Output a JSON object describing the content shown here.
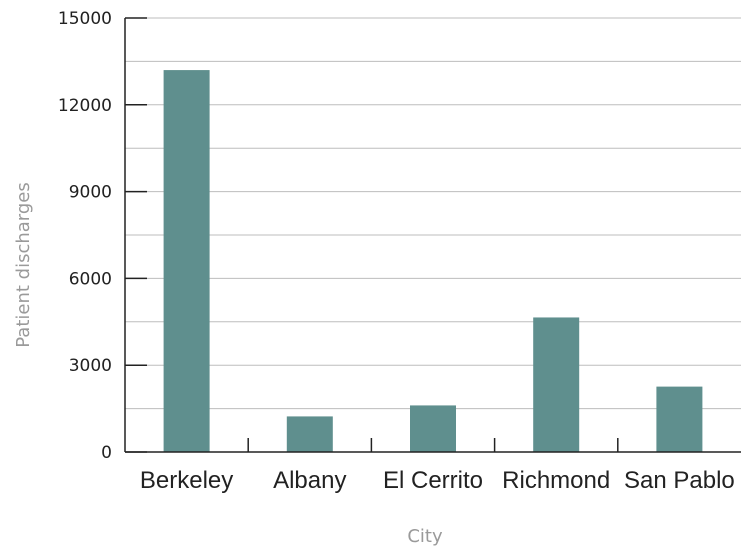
{
  "chart_data": {
    "type": "bar",
    "title": "",
    "xlabel": "City",
    "ylabel": "Patient discharges",
    "categories": [
      "Berkeley",
      "Albany",
      "El Cerrito",
      "Richmond",
      "San Pablo"
    ],
    "values": [
      13200,
      1230,
      1610,
      4650,
      2260
    ],
    "ylim": [
      0,
      15000
    ],
    "yticks": [
      0,
      3000,
      6000,
      9000,
      12000,
      15000
    ],
    "minor_step": 1500,
    "grid": true,
    "legend": "none",
    "colors": {
      "bar": "#5f8f8e",
      "grid": "#bdbdbd",
      "axis": "#222222"
    }
  }
}
